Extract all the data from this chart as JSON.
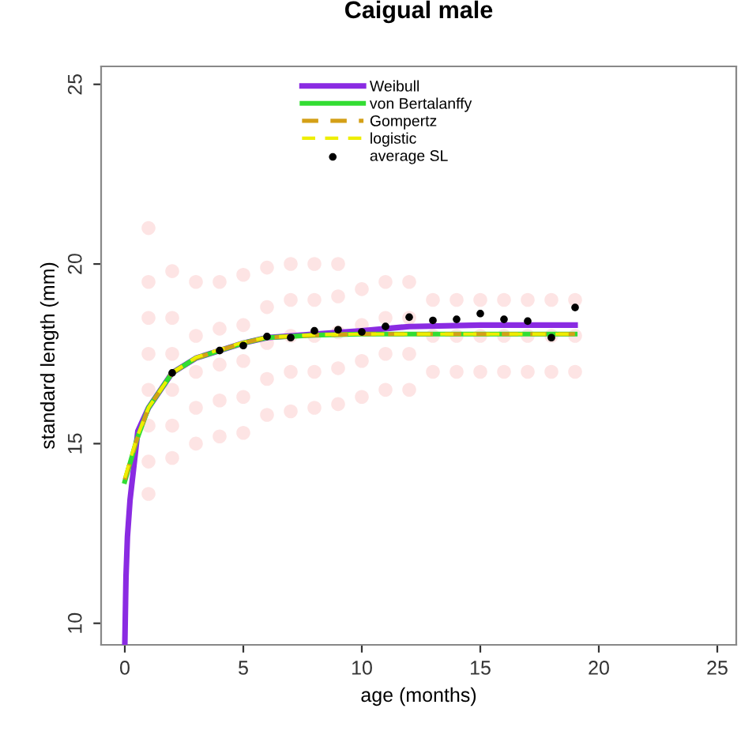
{
  "chart_data": {
    "type": "line",
    "title": "Caigual male",
    "xlabel": "age (months)",
    "ylabel": "standard length (mm)",
    "xlim": [
      -1,
      25.8
    ],
    "ylim": [
      9.4,
      25.5
    ],
    "xticks": [
      0,
      5,
      10,
      15,
      20,
      25
    ],
    "yticks": [
      10,
      15,
      20,
      25
    ],
    "grid": false,
    "legend": "top",
    "series": [
      {
        "type": "scatter",
        "color": "#ee2222",
        "marker": "circle",
        "x": [
          1,
          1,
          1,
          1,
          1,
          1,
          1,
          1,
          2,
          2,
          2,
          2,
          2,
          2,
          3,
          3,
          3,
          3,
          3,
          4,
          4,
          4,
          4,
          4,
          5,
          5,
          5,
          5,
          5,
          6,
          6,
          6,
          6,
          6,
          7,
          7,
          7,
          7,
          7,
          8,
          8,
          8,
          8,
          8,
          9,
          9,
          9,
          9,
          9,
          10,
          10,
          10,
          10,
          11,
          11,
          11,
          11,
          12,
          12,
          12,
          12,
          13,
          13,
          13,
          14,
          14,
          14,
          15,
          15,
          15,
          16,
          16,
          16,
          17,
          17,
          17,
          18,
          18,
          18,
          19,
          19,
          19
        ],
        "values": [
          13.6,
          14.5,
          15.5,
          16.5,
          17.5,
          18.5,
          19.5,
          21,
          14.6,
          15.5,
          16.5,
          17.5,
          18.5,
          19.8,
          15,
          16,
          17,
          18,
          19.5,
          15.2,
          16.2,
          17.2,
          18.2,
          19.5,
          15.3,
          16.3,
          17.3,
          18.3,
          19.7,
          15.8,
          16.8,
          17.8,
          18.8,
          19.9,
          15.9,
          17,
          18,
          19,
          20,
          16,
          17,
          18,
          19,
          20,
          16.1,
          17.1,
          18.1,
          19.1,
          20,
          16.3,
          17.3,
          18.3,
          19.3,
          16.5,
          17.5,
          18.5,
          19.5,
          16.5,
          17.5,
          18.5,
          19.5,
          17,
          18,
          19,
          17,
          18,
          19,
          17,
          18,
          19,
          17,
          18,
          19,
          17,
          18,
          19,
          17,
          18,
          19,
          17,
          18,
          19
        ]
      },
      {
        "name": "Weibull",
        "color": "#8a2be2",
        "line_style": "solid",
        "x": [
          0,
          0.05,
          0.11,
          0.22,
          0.55,
          1,
          2,
          3,
          4,
          5,
          6,
          8,
          10,
          12,
          15,
          19
        ],
        "values": [
          9.4,
          11.3,
          12.4,
          13.43,
          15.35,
          16.0,
          16.97,
          17.38,
          17.59,
          17.8,
          17.95,
          18.05,
          18.14,
          18.26,
          18.3,
          18.3
        ]
      },
      {
        "name": "von Bertalanffy",
        "color": "#33dd33",
        "line_style": "solid",
        "x": [
          0,
          0.5,
          1,
          2,
          3,
          4,
          5,
          6,
          8,
          10,
          19
        ],
        "values": [
          13.95,
          15.1,
          16.0,
          16.97,
          17.38,
          17.59,
          17.8,
          17.95,
          18.02,
          18.05,
          18.05
        ]
      },
      {
        "name": "Gompertz",
        "color": "#d4a017",
        "line_style": "dashed",
        "x": [
          0,
          0.5,
          1,
          2,
          3,
          4,
          5,
          6,
          8,
          10,
          19
        ],
        "values": [
          14.0,
          15.1,
          16.0,
          16.97,
          17.38,
          17.6,
          17.8,
          17.95,
          18.02,
          18.05,
          18.05
        ]
      },
      {
        "name": "logistic",
        "color": "#eeee00",
        "line_style": "dashed",
        "x": [
          0,
          0.5,
          1,
          2,
          3,
          4,
          5,
          6,
          8,
          10,
          19
        ],
        "values": [
          14.05,
          15.15,
          16.0,
          16.97,
          17.4,
          17.62,
          17.82,
          17.96,
          18.03,
          18.05,
          18.05
        ]
      },
      {
        "name": "average SL",
        "type": "scatter",
        "color": "#000000",
        "marker": "circle",
        "x": [
          2,
          4,
          5,
          6,
          7,
          8,
          9,
          10,
          11,
          12,
          13,
          14,
          15,
          16,
          17,
          18,
          19
        ],
        "values": [
          16.97,
          17.59,
          17.73,
          17.98,
          17.95,
          18.14,
          18.17,
          18.11,
          18.26,
          18.52,
          18.43,
          18.46,
          18.62,
          18.46,
          18.41,
          17.95,
          18.79
        ]
      }
    ]
  }
}
